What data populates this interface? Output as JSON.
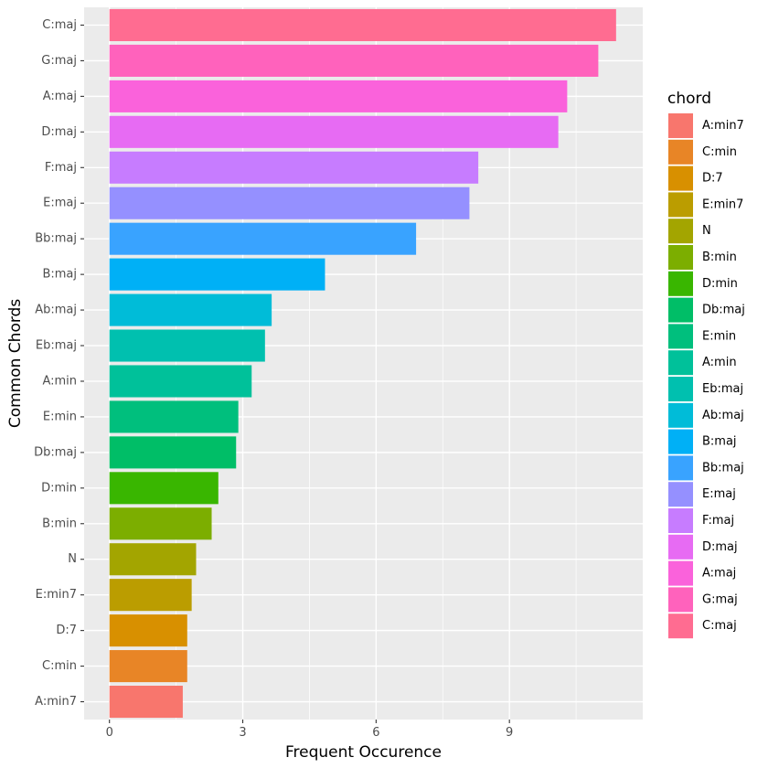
{
  "chart_data": {
    "type": "bar",
    "orientation": "horizontal",
    "categories": [
      "C:maj",
      "G:maj",
      "A:maj",
      "D:maj",
      "F:maj",
      "E:maj",
      "Bb:maj",
      "B:maj",
      "Ab:maj",
      "Eb:maj",
      "A:min",
      "E:min",
      "Db:maj",
      "D:min",
      "B:min",
      "N",
      "E:min7",
      "D:7",
      "C:min",
      "A:min7"
    ],
    "values": [
      11.4,
      11.0,
      10.3,
      10.1,
      8.3,
      8.1,
      6.9,
      4.85,
      3.65,
      3.5,
      3.2,
      2.9,
      2.85,
      2.45,
      2.3,
      1.95,
      1.85,
      1.75,
      1.75,
      1.65
    ],
    "colors": [
      "#FF6C91",
      "#FF62BC",
      "#FA62DB",
      "#E76BF3",
      "#C77CFF",
      "#9590FF",
      "#39A3FF",
      "#00B0F6",
      "#00BCD8",
      "#00C0AF",
      "#00C19A",
      "#00BF7D",
      "#00BE67",
      "#39B600",
      "#7CAE00",
      "#A3A500",
      "#BB9D00",
      "#D89000",
      "#E88526",
      "#F8766D"
    ],
    "xlabel": "Frequent Occurence",
    "ylabel": "Common Chords",
    "xticks": [
      0,
      3,
      6,
      9
    ],
    "xlim": [
      -0.57,
      12.0
    ],
    "grid": true,
    "legend": {
      "title": "chord",
      "position": "right",
      "items": [
        {
          "label": "A:min7",
          "color": "#F8766D"
        },
        {
          "label": "C:min",
          "color": "#E88526"
        },
        {
          "label": "D:7",
          "color": "#D89000"
        },
        {
          "label": "E:min7",
          "color": "#BB9D00"
        },
        {
          "label": "N",
          "color": "#A3A500"
        },
        {
          "label": "B:min",
          "color": "#7CAE00"
        },
        {
          "label": "D:min",
          "color": "#39B600"
        },
        {
          "label": "Db:maj",
          "color": "#00BE67"
        },
        {
          "label": "E:min",
          "color": "#00BF7D"
        },
        {
          "label": "A:min",
          "color": "#00C19A"
        },
        {
          "label": "Eb:maj",
          "color": "#00C0AF"
        },
        {
          "label": "Ab:maj",
          "color": "#00BCD8"
        },
        {
          "label": "B:maj",
          "color": "#00B0F6"
        },
        {
          "label": "Bb:maj",
          "color": "#39A3FF"
        },
        {
          "label": "E:maj",
          "color": "#9590FF"
        },
        {
          "label": "F:maj",
          "color": "#C77CFF"
        },
        {
          "label": "D:maj",
          "color": "#E76BF3"
        },
        {
          "label": "A:maj",
          "color": "#FA62DB"
        },
        {
          "label": "G:maj",
          "color": "#FF62BC"
        },
        {
          "label": "C:maj",
          "color": "#FF6C91"
        }
      ]
    },
    "panel_background": "#EBEBEB",
    "gridline_color": "#FFFFFF"
  }
}
